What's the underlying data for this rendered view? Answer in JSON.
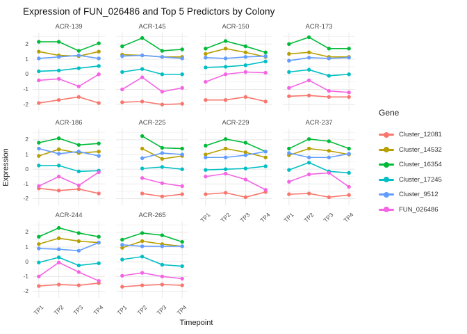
{
  "title": "Expression of FUN_026486 and Top 5 Predictors by Colony",
  "axes": {
    "x_title": "Timepoint",
    "y_title": "Expression",
    "x_ticks": [
      "TP1",
      "TP2",
      "TP3",
      "TP4"
    ],
    "y_ticks": [
      2,
      1,
      0,
      -1,
      -2
    ]
  },
  "legend": {
    "title": "Gene",
    "entries": [
      "Cluster_12081",
      "Cluster_14532",
      "Cluster_16354",
      "Cluster_17245",
      "Cluster_9512",
      "FUN_026486"
    ]
  },
  "genes": [
    {
      "name": "Cluster_12081",
      "color": "#F8766D"
    },
    {
      "name": "Cluster_14532",
      "color": "#B79F00"
    },
    {
      "name": "Cluster_16354",
      "color": "#00BA38"
    },
    {
      "name": "Cluster_17245",
      "color": "#00BFC4"
    },
    {
      "name": "Cluster_9512",
      "color": "#619CFF"
    },
    {
      "name": "FUN_026486",
      "color": "#F564E3"
    }
  ],
  "chart_data": {
    "type": "line",
    "title": "Expression of FUN_026486 and Top 5 Predictors by Colony",
    "xlabel": "Timepoint",
    "ylabel": "Expression",
    "x": [
      "TP1",
      "TP2",
      "TP3",
      "TP4"
    ],
    "ylim": [
      -2.45,
      2.75
    ],
    "yticks": [
      -2,
      -1,
      0,
      1,
      2
    ],
    "grid": "major+minor",
    "legend_position": "right",
    "facet_by": "Colony",
    "facets": [
      {
        "name": "ACR-139",
        "series": [
          {
            "name": "Cluster_12081",
            "values": [
              -1.9,
              -1.7,
              -1.5,
              -1.9
            ]
          },
          {
            "name": "Cluster_14532",
            "values": [
              1.5,
              1.25,
              1.2,
              1.5
            ]
          },
          {
            "name": "Cluster_16354",
            "values": [
              2.15,
              2.15,
              1.55,
              2.05
            ]
          },
          {
            "name": "Cluster_17245",
            "values": [
              0.2,
              0.25,
              0.4,
              0.55
            ]
          },
          {
            "name": "Cluster_9512",
            "values": [
              1.05,
              1.15,
              1.25,
              1.05
            ]
          },
          {
            "name": "FUN_026486",
            "values": [
              -0.4,
              -0.3,
              -0.8,
              0.0
            ]
          }
        ]
      },
      {
        "name": "ACR-145",
        "series": [
          {
            "name": "Cluster_12081",
            "values": [
              -1.85,
              -1.8,
              -2.0,
              -1.95
            ]
          },
          {
            "name": "Cluster_14532",
            "values": [
              1.3,
              1.25,
              1.15,
              1.15
            ]
          },
          {
            "name": "Cluster_16354",
            "values": [
              1.85,
              2.4,
              1.55,
              1.65
            ]
          },
          {
            "name": "Cluster_17245",
            "values": [
              0.15,
              0.35,
              0.0,
              0.0
            ]
          },
          {
            "name": "Cluster_9512",
            "values": [
              1.2,
              1.25,
              1.15,
              1.05
            ]
          },
          {
            "name": "FUN_026486",
            "values": [
              -1.0,
              -0.2,
              -1.15,
              -0.9
            ]
          }
        ]
      },
      {
        "name": "ACR-150",
        "series": [
          {
            "name": "Cluster_12081",
            "values": [
              -1.7,
              -1.7,
              -1.5,
              -1.8
            ]
          },
          {
            "name": "Cluster_14532",
            "values": [
              1.35,
              1.7,
              1.45,
              1.15
            ]
          },
          {
            "name": "Cluster_16354",
            "values": [
              1.7,
              2.2,
              1.85,
              1.45
            ]
          },
          {
            "name": "Cluster_17245",
            "values": [
              0.45,
              0.5,
              0.6,
              0.85
            ]
          },
          {
            "name": "Cluster_9512",
            "values": [
              1.1,
              1.05,
              1.15,
              1.2
            ]
          },
          {
            "name": "FUN_026486",
            "values": [
              -0.5,
              0.0,
              0.15,
              0.1
            ]
          }
        ]
      },
      {
        "name": "ACR-173",
        "series": [
          {
            "name": "Cluster_12081",
            "values": [
              -1.45,
              -1.4,
              -1.5,
              -1.5
            ]
          },
          {
            "name": "Cluster_14532",
            "values": [
              1.35,
              1.45,
              1.15,
              1.15
            ]
          },
          {
            "name": "Cluster_16354",
            "values": [
              2.0,
              2.45,
              1.7,
              1.7
            ]
          },
          {
            "name": "Cluster_17245",
            "values": [
              0.15,
              0.3,
              -0.1,
              0.0
            ]
          },
          {
            "name": "Cluster_9512",
            "values": [
              0.9,
              1.1,
              1.05,
              1.1
            ]
          },
          {
            "name": "FUN_026486",
            "values": [
              -0.9,
              -0.4,
              -1.1,
              -1.2
            ]
          }
        ]
      },
      {
        "name": "ACR-186",
        "series": [
          {
            "name": "Cluster_12081",
            "values": [
              -1.3,
              -1.45,
              -1.35,
              -1.65
            ]
          },
          {
            "name": "Cluster_14532",
            "values": [
              0.9,
              1.35,
              1.1,
              1.2
            ]
          },
          {
            "name": "Cluster_16354",
            "values": [
              1.8,
              2.1,
              1.65,
              1.75
            ]
          },
          {
            "name": "Cluster_17245",
            "values": [
              0.25,
              0.25,
              -0.15,
              -0.1
            ]
          },
          {
            "name": "Cluster_9512",
            "values": [
              1.4,
              1.05,
              1.2,
              0.9
            ]
          },
          {
            "name": "FUN_026486",
            "values": [
              -1.15,
              -0.5,
              -1.1,
              -0.2
            ]
          }
        ]
      },
      {
        "name": "ACR-225",
        "series": [
          {
            "name": "Cluster_12081",
            "values": [
              null,
              -1.65,
              -1.85,
              -1.7
            ]
          },
          {
            "name": "Cluster_14532",
            "values": [
              null,
              1.4,
              0.7,
              0.9
            ]
          },
          {
            "name": "Cluster_16354",
            "values": [
              null,
              2.25,
              1.45,
              1.4
            ]
          },
          {
            "name": "Cluster_17245",
            "values": [
              null,
              0.05,
              0.15,
              0.0
            ]
          },
          {
            "name": "Cluster_9512",
            "values": [
              null,
              0.75,
              1.1,
              1.0
            ]
          },
          {
            "name": "FUN_026486",
            "values": [
              null,
              -0.6,
              -0.95,
              -1.15
            ]
          }
        ]
      },
      {
        "name": "ACR-229",
        "series": [
          {
            "name": "Cluster_12081",
            "values": [
              -1.7,
              -1.6,
              -1.9,
              -1.55
            ]
          },
          {
            "name": "Cluster_14532",
            "values": [
              1.0,
              1.4,
              1.15,
              0.8
            ]
          },
          {
            "name": "Cluster_16354",
            "values": [
              1.6,
              2.05,
              1.8,
              1.2
            ]
          },
          {
            "name": "Cluster_17245",
            "values": [
              -0.05,
              0.0,
              0.05,
              0.2
            ]
          },
          {
            "name": "Cluster_9512",
            "values": [
              0.8,
              0.8,
              0.95,
              1.2
            ]
          },
          {
            "name": "FUN_026486",
            "values": [
              -0.5,
              -0.3,
              -0.7,
              -1.4
            ]
          }
        ]
      },
      {
        "name": "ACR-237",
        "series": [
          {
            "name": "Cluster_12081",
            "values": [
              -1.7,
              -1.65,
              -1.9,
              -1.75
            ]
          },
          {
            "name": "Cluster_14532",
            "values": [
              0.95,
              1.4,
              1.25,
              1.0
            ]
          },
          {
            "name": "Cluster_16354",
            "values": [
              1.4,
              2.05,
              1.9,
              1.4
            ]
          },
          {
            "name": "Cluster_17245",
            "values": [
              -0.05,
              0.45,
              -0.15,
              -0.25
            ]
          },
          {
            "name": "Cluster_9512",
            "values": [
              1.1,
              0.8,
              0.8,
              1.05
            ]
          },
          {
            "name": "FUN_026486",
            "values": [
              -0.85,
              -0.35,
              -0.25,
              -1.2
            ]
          }
        ]
      },
      {
        "name": "ACR-244",
        "series": [
          {
            "name": "Cluster_12081",
            "values": [
              -1.65,
              -1.55,
              -1.6,
              -1.45
            ]
          },
          {
            "name": "Cluster_14532",
            "values": [
              1.2,
              1.6,
              1.4,
              1.3
            ]
          },
          {
            "name": "Cluster_16354",
            "values": [
              1.7,
              2.3,
              1.95,
              1.7
            ]
          },
          {
            "name": "Cluster_17245",
            "values": [
              -0.05,
              0.3,
              -0.25,
              -0.1
            ]
          },
          {
            "name": "Cluster_9512",
            "values": [
              0.9,
              0.85,
              0.75,
              1.3
            ]
          },
          {
            "name": "FUN_026486",
            "values": [
              -1.0,
              -0.05,
              -0.7,
              -1.3
            ]
          }
        ]
      },
      {
        "name": "ACR-265",
        "series": [
          {
            "name": "Cluster_12081",
            "values": [
              -1.7,
              -1.6,
              -1.55,
              -1.6
            ]
          },
          {
            "name": "Cluster_14532",
            "values": [
              0.95,
              1.4,
              1.2,
              1.05
            ]
          },
          {
            "name": "Cluster_16354",
            "values": [
              1.5,
              1.95,
              1.8,
              1.35
            ]
          },
          {
            "name": "Cluster_17245",
            "values": [
              0.15,
              0.35,
              -0.2,
              -0.3
            ]
          },
          {
            "name": "Cluster_9512",
            "values": [
              1.15,
              1.05,
              1.05,
              1.05
            ]
          },
          {
            "name": "FUN_026486",
            "values": [
              -0.95,
              -0.75,
              -1.0,
              -1.15
            ]
          }
        ]
      }
    ]
  },
  "style": {
    "grid_major_color": "#e8e8e8",
    "grid_minor_color": "#f3f3f3",
    "background": "#ffffff"
  }
}
